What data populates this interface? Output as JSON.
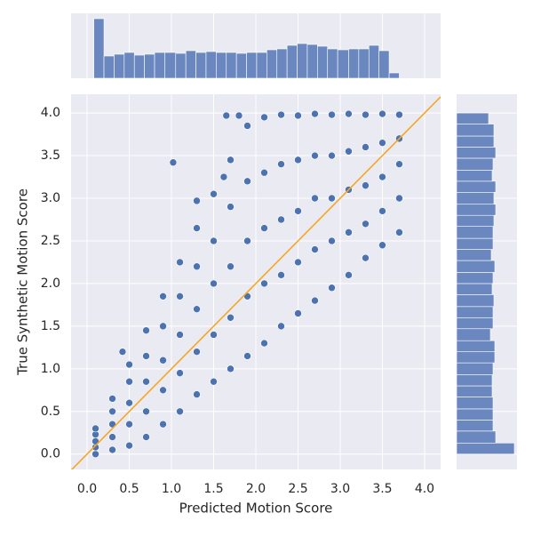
{
  "chart_data": [
    {
      "type": "scatter",
      "xlabel": "Predicted Motion Score",
      "ylabel": "True Synthetic Motion Score",
      "xlim": [
        -0.19,
        4.19
      ],
      "ylim": [
        -0.18,
        4.22
      ],
      "xticks": [
        {
          "value": 0,
          "label": "0.0"
        },
        {
          "value": 0.5,
          "label": "0.5"
        },
        {
          "value": 1,
          "label": "1.0"
        },
        {
          "value": 1.5,
          "label": "1.5"
        },
        {
          "value": 2,
          "label": "2.0"
        },
        {
          "value": 2.5,
          "label": "2.5"
        },
        {
          "value": 3,
          "label": "3.0"
        },
        {
          "value": 3.5,
          "label": "3.5"
        },
        {
          "value": 4,
          "label": "4.0"
        }
      ],
      "yticks": [
        {
          "value": 0,
          "label": "0.0"
        },
        {
          "value": 0.5,
          "label": "0.5"
        },
        {
          "value": 1,
          "label": "1.0"
        },
        {
          "value": 1.5,
          "label": "1.5"
        },
        {
          "value": 2,
          "label": "2.0"
        },
        {
          "value": 2.5,
          "label": "2.5"
        },
        {
          "value": 3,
          "label": "3.0"
        },
        {
          "value": 3.5,
          "label": "3.5"
        },
        {
          "value": 4,
          "label": "4.0"
        }
      ],
      "grid": true,
      "diagonal_color": "#f5a623",
      "series": [
        {
          "color": "#4c72b0",
          "x": [
            0.1,
            0.1,
            0.1,
            0.1,
            0.1,
            0.3,
            0.3,
            0.3,
            0.3,
            0.3,
            0.5,
            0.5,
            0.5,
            0.5,
            0.5,
            0.7,
            0.7,
            0.7,
            0.7,
            0.7,
            0.9,
            0.9,
            0.9,
            0.9,
            0.9,
            1.1,
            1.1,
            1.1,
            1.1,
            1.1,
            1.3,
            1.3,
            1.3,
            1.3,
            1.3,
            1.5,
            1.5,
            1.5,
            1.5,
            1.5,
            1.7,
            1.7,
            1.7,
            1.7,
            1.7,
            1.9,
            1.9,
            1.9,
            1.9,
            1.9,
            2.1,
            2.1,
            2.1,
            2.1,
            2.1,
            2.3,
            2.3,
            2.3,
            2.3,
            2.3,
            2.5,
            2.5,
            2.5,
            2.5,
            2.5,
            2.7,
            2.7,
            2.7,
            2.7,
            2.7,
            2.9,
            2.9,
            2.9,
            2.9,
            2.9,
            3.1,
            3.1,
            3.1,
            3.1,
            3.1,
            3.3,
            3.3,
            3.3,
            3.3,
            3.3,
            3.5,
            3.5,
            3.5,
            3.5,
            3.5,
            3.7,
            3.7,
            3.7,
            3.7,
            3.7,
            1.02,
            1.65,
            1.8,
            0.42,
            1.3,
            1.62
          ],
          "y": [
            0,
            0.08,
            0.15,
            0.23,
            0.3,
            0.05,
            0.2,
            0.35,
            0.5,
            0.65,
            0.1,
            0.35,
            0.6,
            0.85,
            1.05,
            0.2,
            0.5,
            0.85,
            1.15,
            1.45,
            0.35,
            0.75,
            1.1,
            1.5,
            1.85,
            0.5,
            0.95,
            1.4,
            1.85,
            2.25,
            0.7,
            1.2,
            1.7,
            2.2,
            2.65,
            0.85,
            1.4,
            2.0,
            2.5,
            3.05,
            1.0,
            1.6,
            2.2,
            2.9,
            3.45,
            1.15,
            1.85,
            2.5,
            3.2,
            3.85,
            1.3,
            2.0,
            2.65,
            3.3,
            3.95,
            1.5,
            2.1,
            2.75,
            3.4,
            3.98,
            1.65,
            2.25,
            2.85,
            3.45,
            3.97,
            1.8,
            2.4,
            3.0,
            3.5,
            3.99,
            1.95,
            2.5,
            3.0,
            3.5,
            3.98,
            2.1,
            2.6,
            3.1,
            3.55,
            3.99,
            2.3,
            2.7,
            3.15,
            3.6,
            3.98,
            2.45,
            2.85,
            3.25,
            3.65,
            3.99,
            2.6,
            3.0,
            3.4,
            3.7,
            3.98,
            3.42,
            3.97,
            3.97,
            1.2,
            2.97,
            3.25
          ]
        }
      ]
    },
    {
      "type": "histogram",
      "orientation": "vertical",
      "color": "#6a88bf",
      "bins": [
        0.08,
        0.2,
        0.32,
        0.44,
        0.56,
        0.68,
        0.8,
        0.92,
        1.05,
        1.17,
        1.29,
        1.41,
        1.53,
        1.65,
        1.77,
        1.89,
        2.01,
        2.13,
        2.25,
        2.37,
        2.49,
        2.61,
        2.73,
        2.85,
        2.97,
        3.1,
        3.22,
        3.34,
        3.46,
        3.58,
        3.7
      ],
      "counts": [
        67,
        25,
        27,
        29,
        26,
        27,
        29,
        29,
        28,
        31,
        29,
        30,
        29,
        29,
        28,
        29,
        29,
        32,
        33,
        37,
        39,
        38,
        36,
        33,
        32,
        33,
        33,
        37,
        31,
        6
      ]
    },
    {
      "type": "histogram",
      "orientation": "horizontal",
      "color": "#6a88bf",
      "bins": [
        0,
        0.13,
        0.27,
        0.4,
        0.53,
        0.67,
        0.8,
        0.93,
        1.07,
        1.2,
        1.33,
        1.47,
        1.6,
        1.73,
        1.87,
        2.0,
        2.13,
        2.27,
        2.4,
        2.53,
        2.67,
        2.8,
        2.93,
        3.07,
        3.2,
        3.33,
        3.47,
        3.6,
        3.73,
        3.87,
        4.0
      ],
      "counts": [
        65,
        44,
        41,
        41,
        41,
        40,
        40,
        41,
        43,
        43,
        38,
        41,
        41,
        42,
        40,
        41,
        43,
        39,
        41,
        41,
        42,
        44,
        42,
        44,
        40,
        41,
        44,
        42,
        42,
        36
      ]
    }
  ]
}
